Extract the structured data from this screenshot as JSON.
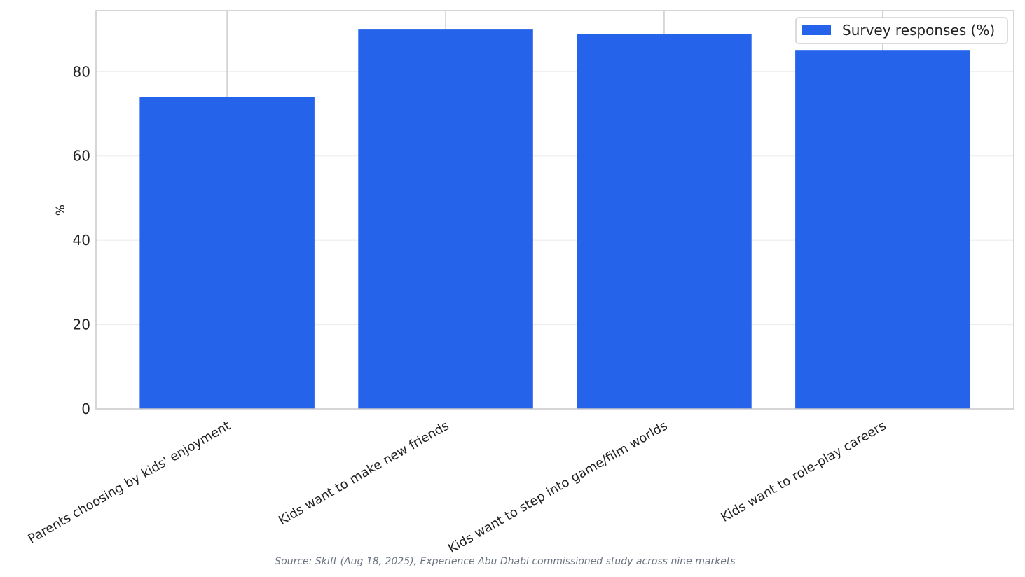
{
  "chart_data": {
    "type": "bar",
    "categories": [
      "Parents choosing by kids' enjoyment",
      "Kids want to make new friends",
      "Kids want to step into game/film worlds",
      "Kids want to role-play careers"
    ],
    "series": [
      {
        "name": "Survey responses (%)",
        "color": "#2563eb",
        "values": [
          74,
          90,
          89,
          85
        ]
      }
    ],
    "y_label": "%",
    "ylim": [
      0,
      94.5
    ],
    "yticks": [
      0,
      20,
      40,
      60,
      80
    ],
    "grid": true,
    "legend": "upper right",
    "source": "Source: Skift (Aug 18, 2025), Experience Abu Dhabi commissioned study across nine markets"
  }
}
